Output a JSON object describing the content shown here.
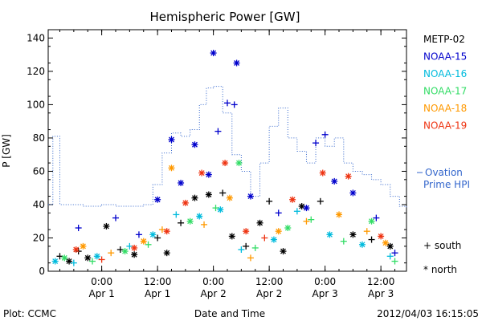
{
  "chart_data": {
    "type": "scatter",
    "title": "Hemispheric Power [GW]",
    "ylabel": "P [GW]",
    "xlabel": "Date and Time",
    "ylim": [
      0,
      145
    ],
    "xlim": [
      "2012-03-31T12:30",
      "2012-04-03T17:30"
    ],
    "y_ticks": [
      0,
      20,
      40,
      60,
      80,
      100,
      120,
      140
    ],
    "x_ticks": [
      {
        "x": "2012-04-01T00:00",
        "label": "0:00",
        "sub": "Apr 1"
      },
      {
        "x": "2012-04-01T12:00",
        "label": "12:00",
        "sub": "Apr 1"
      },
      {
        "x": "2012-04-02T00:00",
        "label": "0:00",
        "sub": "Apr 2"
      },
      {
        "x": "2012-04-02T12:00",
        "label": "12:00",
        "sub": "Apr 2"
      },
      {
        "x": "2012-04-03T00:00",
        "label": "0:00",
        "sub": "Apr 3"
      },
      {
        "x": "2012-04-03T12:00",
        "label": "12:00",
        "sub": "Apr 3"
      }
    ],
    "legend_placement": "right",
    "series": [
      {
        "name": "METP-02",
        "color": "#000000",
        "points": [
          {
            "x": "2012-03-31T15:00",
            "y": 9,
            "m": "+"
          },
          {
            "x": "2012-03-31T17:00",
            "y": 6,
            "m": "*"
          },
          {
            "x": "2012-03-31T19:00",
            "y": 12,
            "m": "+"
          },
          {
            "x": "2012-03-31T21:00",
            "y": 8,
            "m": "*"
          },
          {
            "x": "2012-04-01T01:00",
            "y": 27,
            "m": "*"
          },
          {
            "x": "2012-04-01T04:00",
            "y": 13,
            "m": "+"
          },
          {
            "x": "2012-04-01T07:00",
            "y": 10,
            "m": "*"
          },
          {
            "x": "2012-04-01T12:00",
            "y": 20,
            "m": "+"
          },
          {
            "x": "2012-04-01T14:00",
            "y": 11,
            "m": "*"
          },
          {
            "x": "2012-04-01T17:00",
            "y": 29,
            "m": "+"
          },
          {
            "x": "2012-04-01T20:00",
            "y": 44,
            "m": "*"
          },
          {
            "x": "2012-04-01T23:00",
            "y": 46,
            "m": "*"
          },
          {
            "x": "2012-04-02T02:00",
            "y": 47,
            "m": "+"
          },
          {
            "x": "2012-04-02T04:00",
            "y": 21,
            "m": "*"
          },
          {
            "x": "2012-04-02T07:00",
            "y": 15,
            "m": "+"
          },
          {
            "x": "2012-04-02T10:00",
            "y": 29,
            "m": "*"
          },
          {
            "x": "2012-04-02T12:00",
            "y": 42,
            "m": "+"
          },
          {
            "x": "2012-04-02T15:00",
            "y": 12,
            "m": "*"
          },
          {
            "x": "2012-04-02T19:00",
            "y": 39,
            "m": "*"
          },
          {
            "x": "2012-04-02T23:00",
            "y": 42,
            "m": "+"
          },
          {
            "x": "2012-04-03T06:00",
            "y": 22,
            "m": "*"
          },
          {
            "x": "2012-04-03T10:00",
            "y": 19,
            "m": "+"
          },
          {
            "x": "2012-04-03T14:00",
            "y": 15,
            "m": "*"
          }
        ]
      },
      {
        "name": "NOAA-15",
        "color": "#0000cc",
        "points": [
          {
            "x": "2012-03-31T19:00",
            "y": 26,
            "m": "+"
          },
          {
            "x": "2012-04-01T03:00",
            "y": 32,
            "m": "+"
          },
          {
            "x": "2012-04-01T08:00",
            "y": 22,
            "m": "+"
          },
          {
            "x": "2012-04-01T12:00",
            "y": 43,
            "m": "*"
          },
          {
            "x": "2012-04-01T15:00",
            "y": 79,
            "m": "*"
          },
          {
            "x": "2012-04-01T17:00",
            "y": 53,
            "m": "*"
          },
          {
            "x": "2012-04-01T20:00",
            "y": 76,
            "m": "*"
          },
          {
            "x": "2012-04-01T23:00",
            "y": 58,
            "m": "*"
          },
          {
            "x": "2012-04-02T00:00",
            "y": 131,
            "m": "*"
          },
          {
            "x": "2012-04-02T01:00",
            "y": 84,
            "m": "+"
          },
          {
            "x": "2012-04-02T03:00",
            "y": 101,
            "m": "+"
          },
          {
            "x": "2012-04-02T04:30",
            "y": 100,
            "m": "+"
          },
          {
            "x": "2012-04-02T05:00",
            "y": 125,
            "m": "*"
          },
          {
            "x": "2012-04-02T08:00",
            "y": 45,
            "m": "*"
          },
          {
            "x": "2012-04-02T14:00",
            "y": 35,
            "m": "+"
          },
          {
            "x": "2012-04-02T20:00",
            "y": 38,
            "m": "*"
          },
          {
            "x": "2012-04-02T22:00",
            "y": 77,
            "m": "+"
          },
          {
            "x": "2012-04-03T00:00",
            "y": 82,
            "m": "+"
          },
          {
            "x": "2012-04-03T02:00",
            "y": 54,
            "m": "*"
          },
          {
            "x": "2012-04-03T06:00",
            "y": 47,
            "m": "*"
          },
          {
            "x": "2012-04-03T11:00",
            "y": 32,
            "m": "+"
          },
          {
            "x": "2012-04-03T15:00",
            "y": 11,
            "m": "+"
          }
        ]
      },
      {
        "name": "NOAA-16",
        "color": "#00bbdd",
        "points": [
          {
            "x": "2012-03-31T14:00",
            "y": 6,
            "m": "*"
          },
          {
            "x": "2012-03-31T18:00",
            "y": 5,
            "m": "+"
          },
          {
            "x": "2012-03-31T23:00",
            "y": 9,
            "m": "*"
          },
          {
            "x": "2012-04-01T06:00",
            "y": 15,
            "m": "+"
          },
          {
            "x": "2012-04-01T11:00",
            "y": 22,
            "m": "*"
          },
          {
            "x": "2012-04-01T16:00",
            "y": 34,
            "m": "+"
          },
          {
            "x": "2012-04-01T21:00",
            "y": 33,
            "m": "*"
          },
          {
            "x": "2012-04-02T01:30",
            "y": 37,
            "m": "*"
          },
          {
            "x": "2012-04-02T06:00",
            "y": 13,
            "m": "+"
          },
          {
            "x": "2012-04-02T13:00",
            "y": 19,
            "m": "*"
          },
          {
            "x": "2012-04-02T18:00",
            "y": 36,
            "m": "+"
          },
          {
            "x": "2012-04-03T01:00",
            "y": 22,
            "m": "*"
          },
          {
            "x": "2012-04-03T08:00",
            "y": 16,
            "m": "*"
          },
          {
            "x": "2012-04-03T14:00",
            "y": 9,
            "m": "+"
          }
        ]
      },
      {
        "name": "NOAA-17",
        "color": "#33dd66",
        "points": [
          {
            "x": "2012-03-31T16:00",
            "y": 8,
            "m": "*"
          },
          {
            "x": "2012-03-31T22:00",
            "y": 6,
            "m": "+"
          },
          {
            "x": "2012-04-01T05:00",
            "y": 12,
            "m": "*"
          },
          {
            "x": "2012-04-01T10:00",
            "y": 16,
            "m": "+"
          },
          {
            "x": "2012-04-01T19:00",
            "y": 30,
            "m": "*"
          },
          {
            "x": "2012-04-02T00:30",
            "y": 38,
            "m": "+"
          },
          {
            "x": "2012-04-02T05:30",
            "y": 65,
            "m": "*"
          },
          {
            "x": "2012-04-02T09:00",
            "y": 14,
            "m": "+"
          },
          {
            "x": "2012-04-02T16:00",
            "y": 26,
            "m": "*"
          },
          {
            "x": "2012-04-02T21:00",
            "y": 31,
            "m": "+"
          },
          {
            "x": "2012-04-03T04:00",
            "y": 18,
            "m": "+"
          },
          {
            "x": "2012-04-03T10:00",
            "y": 30,
            "m": "*"
          },
          {
            "x": "2012-04-03T15:00",
            "y": 6,
            "m": "+"
          }
        ]
      },
      {
        "name": "NOAA-18",
        "color": "#ff9900",
        "points": [
          {
            "x": "2012-03-31T20:00",
            "y": 15,
            "m": "*"
          },
          {
            "x": "2012-04-01T02:00",
            "y": 11,
            "m": "+"
          },
          {
            "x": "2012-04-01T09:00",
            "y": 18,
            "m": "*"
          },
          {
            "x": "2012-04-01T13:00",
            "y": 25,
            "m": "+"
          },
          {
            "x": "2012-04-01T15:00",
            "y": 62,
            "m": "*"
          },
          {
            "x": "2012-04-01T22:00",
            "y": 28,
            "m": "+"
          },
          {
            "x": "2012-04-02T03:30",
            "y": 44,
            "m": "*"
          },
          {
            "x": "2012-04-02T08:00",
            "y": 8,
            "m": "+"
          },
          {
            "x": "2012-04-02T14:00",
            "y": 24,
            "m": "*"
          },
          {
            "x": "2012-04-02T20:00",
            "y": 30,
            "m": "+"
          },
          {
            "x": "2012-04-03T03:00",
            "y": 34,
            "m": "*"
          },
          {
            "x": "2012-04-03T09:00",
            "y": 24,
            "m": "+"
          },
          {
            "x": "2012-04-03T13:00",
            "y": 17,
            "m": "*"
          }
        ]
      },
      {
        "name": "NOAA-19",
        "color": "#ee3311",
        "points": [
          {
            "x": "2012-03-31T18:30",
            "y": 13,
            "m": "*"
          },
          {
            "x": "2012-04-01T00:00",
            "y": 7,
            "m": "+"
          },
          {
            "x": "2012-04-01T07:00",
            "y": 14,
            "m": "*"
          },
          {
            "x": "2012-04-01T14:00",
            "y": 24,
            "m": "*"
          },
          {
            "x": "2012-04-01T18:00",
            "y": 41,
            "m": "*"
          },
          {
            "x": "2012-04-01T21:30",
            "y": 59,
            "m": "*"
          },
          {
            "x": "2012-04-02T02:30",
            "y": 65,
            "m": "*"
          },
          {
            "x": "2012-04-02T07:00",
            "y": 24,
            "m": "*"
          },
          {
            "x": "2012-04-02T11:00",
            "y": 20,
            "m": "+"
          },
          {
            "x": "2012-04-02T17:00",
            "y": 43,
            "m": "*"
          },
          {
            "x": "2012-04-02T23:30",
            "y": 59,
            "m": "*"
          },
          {
            "x": "2012-04-03T05:00",
            "y": 57,
            "m": "*"
          },
          {
            "x": "2012-04-03T12:00",
            "y": 21,
            "m": "*"
          }
        ]
      }
    ],
    "ovation": {
      "label_line1": "Ovation",
      "label_line2": "Prime HPI",
      "color": "#3366cc",
      "points": [
        {
          "x": "2012-03-31T12:30",
          "y": 40
        },
        {
          "x": "2012-03-31T13:30",
          "y": 81
        },
        {
          "x": "2012-03-31T15:00",
          "y": 40
        },
        {
          "x": "2012-03-31T20:00",
          "y": 39
        },
        {
          "x": "2012-04-01T00:00",
          "y": 40
        },
        {
          "x": "2012-04-01T03:00",
          "y": 39
        },
        {
          "x": "2012-04-01T06:00",
          "y": 39
        },
        {
          "x": "2012-04-01T09:00",
          "y": 40
        },
        {
          "x": "2012-04-01T11:00",
          "y": 52
        },
        {
          "x": "2012-04-01T13:00",
          "y": 71
        },
        {
          "x": "2012-04-01T15:00",
          "y": 83
        },
        {
          "x": "2012-04-01T17:00",
          "y": 81
        },
        {
          "x": "2012-04-01T19:00",
          "y": 85
        },
        {
          "x": "2012-04-01T21:00",
          "y": 100
        },
        {
          "x": "2012-04-01T22:30",
          "y": 110
        },
        {
          "x": "2012-04-02T00:00",
          "y": 111
        },
        {
          "x": "2012-04-02T02:00",
          "y": 95
        },
        {
          "x": "2012-04-02T04:00",
          "y": 70
        },
        {
          "x": "2012-04-02T06:00",
          "y": 60
        },
        {
          "x": "2012-04-02T08:00",
          "y": 45
        },
        {
          "x": "2012-04-02T10:00",
          "y": 65
        },
        {
          "x": "2012-04-02T12:00",
          "y": 87
        },
        {
          "x": "2012-04-02T14:00",
          "y": 98
        },
        {
          "x": "2012-04-02T16:00",
          "y": 80
        },
        {
          "x": "2012-04-02T18:00",
          "y": 72
        },
        {
          "x": "2012-04-02T20:00",
          "y": 65
        },
        {
          "x": "2012-04-02T22:00",
          "y": 80
        },
        {
          "x": "2012-04-03T00:00",
          "y": 75
        },
        {
          "x": "2012-04-03T02:00",
          "y": 80
        },
        {
          "x": "2012-04-03T04:00",
          "y": 65
        },
        {
          "x": "2012-04-03T06:00",
          "y": 60
        },
        {
          "x": "2012-04-03T08:00",
          "y": 58
        },
        {
          "x": "2012-04-03T10:00",
          "y": 55
        },
        {
          "x": "2012-04-03T12:00",
          "y": 52
        },
        {
          "x": "2012-04-03T14:00",
          "y": 45
        },
        {
          "x": "2012-04-03T16:00",
          "y": 39
        },
        {
          "x": "2012-04-03T17:30",
          "y": 38
        }
      ]
    },
    "marker_legend": [
      {
        "symbol": "+",
        "label": "south"
      },
      {
        "symbol": "*",
        "label": "north"
      }
    ]
  },
  "footer": {
    "left": "Plot: CCMC",
    "center": "Date and Time",
    "right": "2012/04/03 16:15:05"
  }
}
